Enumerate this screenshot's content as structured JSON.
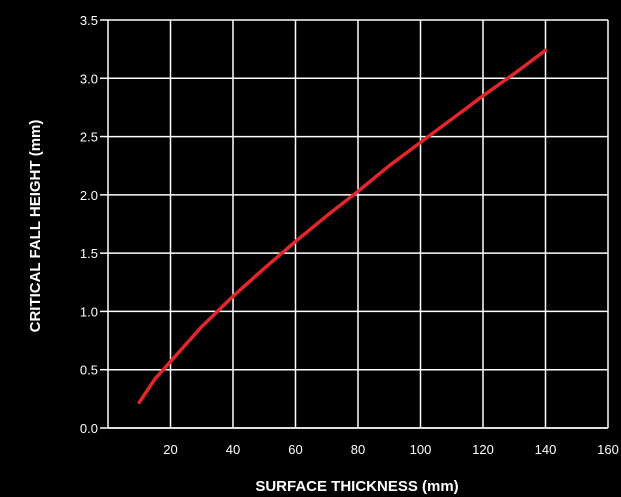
{
  "chart_data": {
    "type": "line",
    "title": "",
    "xlabel": "SURFACE THICKNESS (mm)",
    "ylabel": "CRITICAL FALL HEIGHT (mm)",
    "xlim": [
      0,
      160
    ],
    "ylim": [
      0,
      3.5
    ],
    "xticks": [
      "20",
      "40",
      "60",
      "80",
      "100",
      "120",
      "140",
      "160"
    ],
    "yticks": [
      "0.0",
      "0.5",
      "1.0",
      "1.5",
      "2.0",
      "2.5",
      "3.0",
      "3.5"
    ],
    "grid": true,
    "series": [
      {
        "color": "#e3262b",
        "x": [
          10,
          15,
          20,
          30,
          40,
          50,
          60,
          70,
          80,
          90,
          100,
          110,
          120,
          130,
          140
        ],
        "y": [
          0.22,
          0.42,
          0.57,
          0.87,
          1.13,
          1.37,
          1.6,
          1.82,
          2.03,
          2.25,
          2.45,
          2.65,
          2.85,
          3.04,
          3.24
        ]
      }
    ]
  }
}
